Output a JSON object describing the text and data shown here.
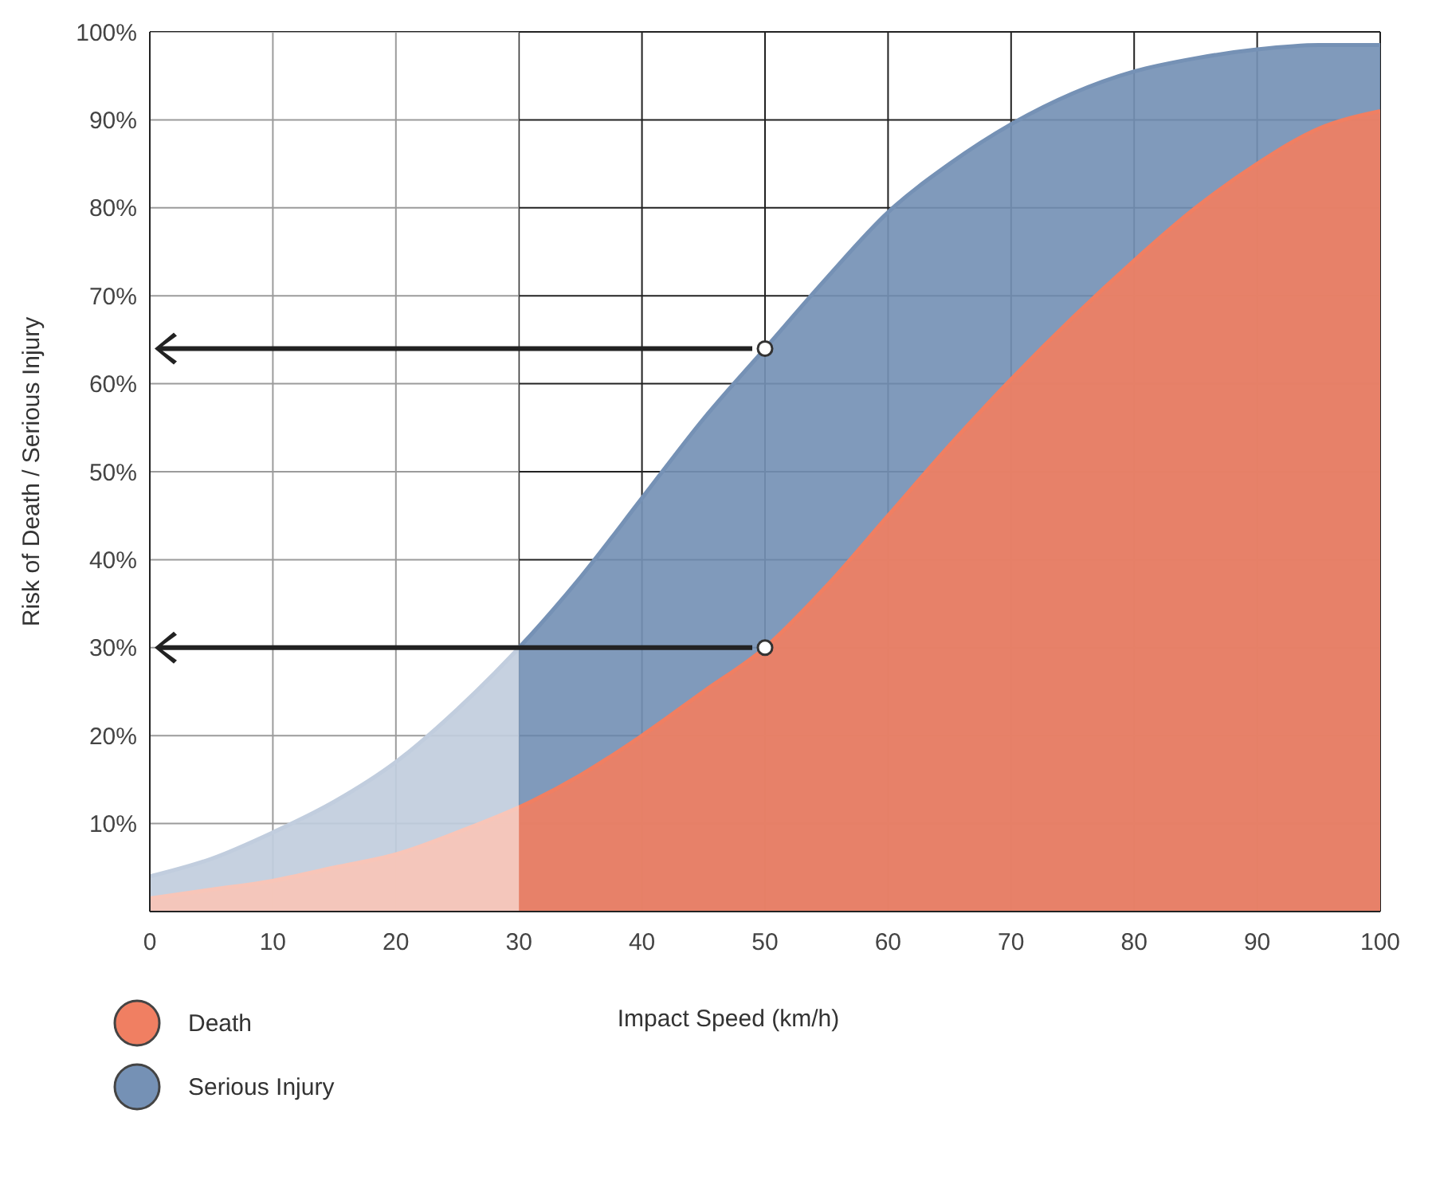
{
  "chart_data": {
    "type": "area",
    "xlabel": "Impact Speed (km/h)",
    "ylabel": "Risk of Death / Serious Injury",
    "x": [
      0,
      5,
      10,
      15,
      20,
      25,
      31,
      35,
      40,
      45,
      50,
      55,
      60,
      65,
      70,
      75,
      80,
      85,
      90,
      95,
      100
    ],
    "series": [
      {
        "name": "Serious Injury",
        "color": "#7591b5",
        "values": [
          4,
          6,
          9,
          12.5,
          17,
          23,
          31.5,
          38,
          47,
          56,
          64,
          72,
          79.5,
          85,
          89.5,
          93,
          95.5,
          97,
          98,
          98.5,
          98.5
        ]
      },
      {
        "name": "Death",
        "color": "#f07f62",
        "values": [
          1.5,
          2.5,
          3.5,
          5,
          6.5,
          9,
          12.5,
          15.5,
          20,
          25,
          30,
          37,
          45,
          53,
          60.5,
          67.5,
          74,
          80,
          85,
          89,
          91
        ]
      },
      {
        "type": "scatter",
        "color": "#ffffff",
        "x": [
          50,
          50
        ],
        "values": [
          64,
          30
        ]
      }
    ],
    "bands": [
      {
        "axis": "x",
        "from": 0,
        "to": 30,
        "color": "#ffffff"
      }
    ],
    "xlim": [
      0,
      100
    ],
    "xticks": [
      0,
      10,
      20,
      30,
      40,
      50,
      60,
      70,
      80,
      90,
      100
    ],
    "ylim": [
      0,
      100
    ],
    "yticks": [
      {
        "value": 0,
        "label": null
      },
      {
        "value": 10,
        "label": "10%"
      },
      {
        "value": 20,
        "label": "20%"
      },
      {
        "value": 30,
        "label": "30%"
      },
      {
        "value": 40,
        "label": "40%"
      },
      {
        "value": 50,
        "label": "50%"
      },
      {
        "value": 60,
        "label": "60%"
      },
      {
        "value": 70,
        "label": "70%"
      },
      {
        "value": 80,
        "label": "80%"
      },
      {
        "value": 90,
        "label": "90%"
      },
      {
        "value": 100,
        "label": "100%"
      }
    ],
    "grid": true,
    "legend": "bottom left"
  }
}
